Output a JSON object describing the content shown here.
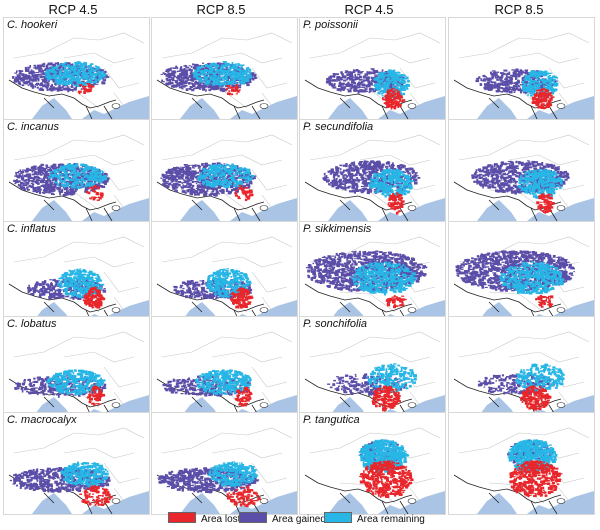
{
  "column_headers": [
    "RCP 4.5",
    "RCP 8.5",
    "RCP 4.5",
    "RCP 8.5"
  ],
  "species_left": [
    "C. hookeri",
    "C. incanus",
    "C. inflatus",
    "C. lobatus",
    "C. macrocalyx"
  ],
  "species_right": [
    "P. poissonii",
    "P. secundifolia",
    "P. sikkimensis",
    "P. sonchifolia",
    "P. tangutica"
  ],
  "legend": [
    {
      "label": "Area lost",
      "color": "#e8262b"
    },
    {
      "label": "Area gained",
      "color": "#5b4ea8"
    },
    {
      "label": "Area remaining",
      "color": "#27b6e6"
    }
  ],
  "colors": {
    "sea": "#a9c4e4",
    "border": "#222222",
    "province_line": "#c8c8c8"
  }
}
